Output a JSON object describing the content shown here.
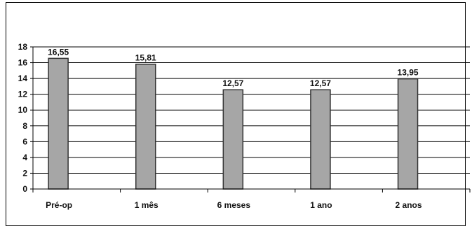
{
  "chart_data": {
    "type": "bar",
    "categories": [
      "Pré-op",
      "1 mês",
      "6 meses",
      "1 ano",
      "2 anos"
    ],
    "values": [
      16.55,
      15.81,
      12.57,
      12.57,
      13.95
    ],
    "data_labels": [
      "16,55",
      "15,81",
      "12,57",
      "12,57",
      "13,95"
    ],
    "y_ticks": [
      "0",
      "2",
      "4",
      "6",
      "8",
      "10",
      "12",
      "14",
      "16",
      "18"
    ],
    "ylim": [
      0,
      18
    ],
    "grid": true,
    "legend": "none",
    "bar_color": "#a6a6a6",
    "bar_stroke": "#333333"
  }
}
